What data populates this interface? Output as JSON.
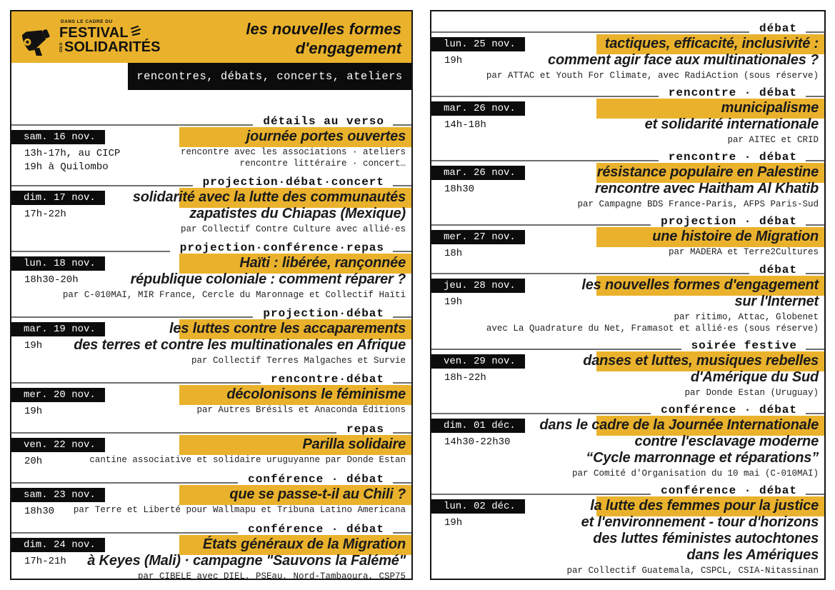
{
  "header": {
    "logo": {
      "pretitle": "DANS LE CADRE DU",
      "festival": "FESTIVAL",
      "des": "DES",
      "solidarites": "SOLIDARITÉS"
    },
    "title_line1": "les nouvelles formes",
    "title_line2": "d'engagement",
    "subtitle": "rencontres, débats, concerts, ateliers"
  },
  "colors": {
    "yellow": "#EAB22C",
    "ink": "#111111",
    "rule": "#6E6E6E",
    "bar_black": "#0C0C0C"
  },
  "left_page": {
    "events": [
      {
        "date": "sam. 16 nov.",
        "times": [
          "13h-17h, au CICP",
          "19h à Quilombo"
        ],
        "type": "détails au verso",
        "title_lines": [
          "journée portes ouvertes"
        ],
        "credit_lines": [
          "rencontre avec les associations · ateliers",
          "rencontre littéraire · concert…"
        ]
      },
      {
        "date": "dim. 17 nov.",
        "times": [
          "17h-22h"
        ],
        "type": "projection·débat·concert",
        "title_lines": [
          "solidarité avec la lutte des communautés",
          "zapatistes du Chiapas (Mexique)"
        ],
        "credit_lines": [
          "par Collectif Contre Culture avec allié·es"
        ]
      },
      {
        "date": "lun. 18 nov.",
        "times": [
          "18h30-20h"
        ],
        "type": "projection·conférence·repas",
        "title_lines": [
          "Haïti : libérée, rançonnée",
          "république coloniale : comment réparer ?"
        ],
        "credit_lines": [
          "par C-010MAI, MIR France, Cercle du Maronnage et Collectif Haïti"
        ]
      },
      {
        "date": "mar. 19 nov.",
        "times": [
          "19h"
        ],
        "type": "projection·débat",
        "title_lines": [
          "les luttes contre les accaparements",
          "des terres et contre les multinationales en Afrique"
        ],
        "credit_lines": [
          "par Collectif Terres Malgaches et Survie"
        ]
      },
      {
        "date": "mer. 20 nov.",
        "times": [
          "19h"
        ],
        "type": "rencontre·débat",
        "title_lines": [
          "décolonisons le féminisme"
        ],
        "credit_lines": [
          "par Autres Brésils et Anaconda Éditions"
        ]
      },
      {
        "date": "ven. 22 nov.",
        "times": [
          "20h"
        ],
        "type": "repas",
        "title_lines": [
          "Parilla solidaire"
        ],
        "credit_lines": [
          "cantine associative et solidaire uruguyanne par Donde Estan"
        ]
      },
      {
        "date": "sam. 23 nov.",
        "times": [
          "18h30"
        ],
        "type": "conférence · débat",
        "title_lines": [
          "que se passe-t-il au Chili ?"
        ],
        "credit_lines": [
          "par Terre et Liberté pour Wallmapu et Tribuna Latino Americana"
        ]
      },
      {
        "date": "dim. 24 nov.",
        "times": [
          "17h-21h"
        ],
        "type": "conférence · débat",
        "title_lines": [
          "États généraux de la Migration",
          "à Keyes (Mali) · campagne \"Sauvons la Falémé\""
        ],
        "credit_lines": [
          "par CIBELE avec DIEL, PSEau, Nord-Tambaoura, CSP75"
        ]
      }
    ]
  },
  "right_page": {
    "events": [
      {
        "date": "lun. 25 nov.",
        "times": [
          "19h"
        ],
        "type": "débat",
        "title_lines": [
          "tactiques, efficacité, inclusivité :",
          "comment agir face aux multinationales ?"
        ],
        "credit_lines": [
          "par ATTAC et Youth For Climate, avec RadiAction (sous réserve)"
        ]
      },
      {
        "date": "mar. 26 nov.",
        "times": [
          "14h-18h"
        ],
        "type": "rencontre · débat",
        "title_lines": [
          "municipalisme",
          "et solidarité internationale"
        ],
        "credit_lines": [
          "par AITEC et CRID"
        ]
      },
      {
        "date": "mar. 26 nov.",
        "times": [
          "18h30"
        ],
        "type": "rencontre · débat",
        "title_lines": [
          "résistance populaire en Palestine",
          "rencontre avec Haitham Al Khatib"
        ],
        "credit_lines": [
          "par Campagne BDS France-Paris, AFPS Paris-Sud"
        ]
      },
      {
        "date": "mer. 27 nov.",
        "times": [
          "18h"
        ],
        "type": "projection · débat",
        "title_lines": [
          "une histoire de Migration"
        ],
        "credit_lines": [
          "par MADERA et Terre2Cultures"
        ]
      },
      {
        "date": "jeu. 28 nov.",
        "times": [
          "19h"
        ],
        "type": "débat",
        "title_lines": [
          "les nouvelles formes d'engagement",
          "sur l'Internet"
        ],
        "credit_lines": [
          "par ritimo, Attac, Globenet",
          "avec La Quadrature du Net, Framasot et allié·es (sous réserve)"
        ]
      },
      {
        "date": "ven. 29 nov.",
        "times": [
          "18h-22h"
        ],
        "type": "soirée festive",
        "title_lines": [
          "danses et luttes, musiques rebelles",
          "d'Amérique du Sud"
        ],
        "credit_lines": [
          "par Donde Estan (Uruguay)"
        ]
      },
      {
        "date": "dim. 01 déc.",
        "times": [
          "14h30-22h30"
        ],
        "type": "conférence · débat",
        "title_lines": [
          "dans le cadre de la Journée Internationale",
          "contre l'esclavage moderne",
          "“Cycle marronnage et réparations”"
        ],
        "credit_lines": [
          "par Comité d'Organisation du 10 mai (C-010MAI)"
        ]
      },
      {
        "date": "lun. 02 déc.",
        "times": [
          "19h"
        ],
        "type": "conférence · débat",
        "title_lines": [
          "la lutte des femmes pour la justice",
          "et l'environnement - tour d'horizons",
          "des luttes féministes autochtones",
          "dans les Amériques"
        ],
        "credit_lines": [
          "par Collectif Guatemala, CSPCL, CSIA-Nitassinan"
        ]
      }
    ]
  }
}
